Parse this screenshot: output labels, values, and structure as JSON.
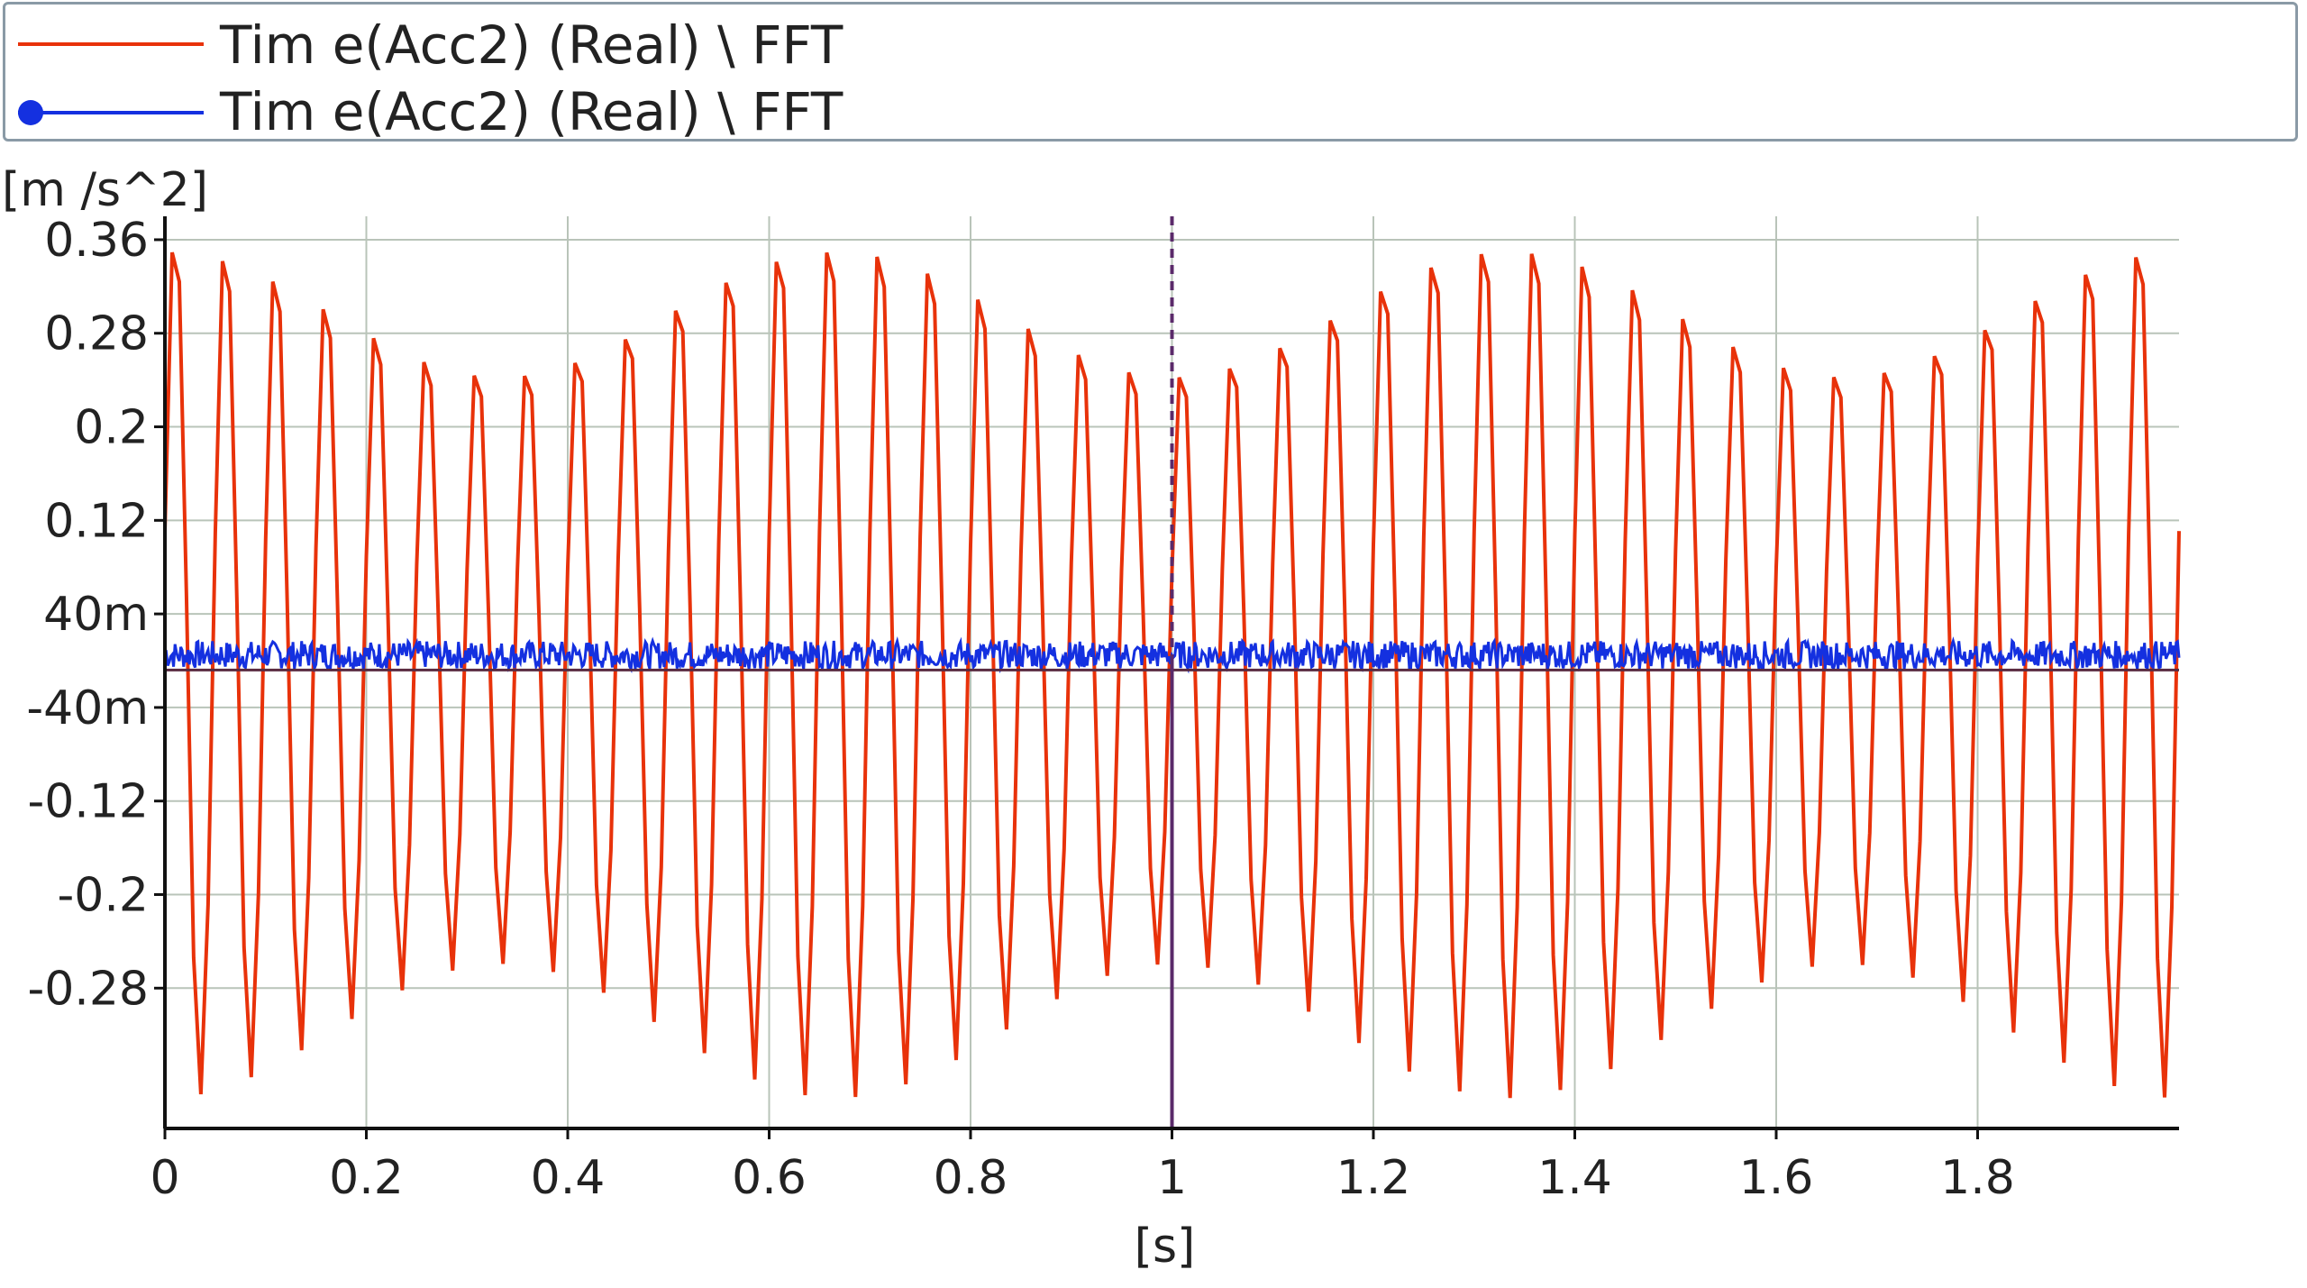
{
  "legend": {
    "items": [
      {
        "label": "Tim e(Acc2) (Real) \\ FFT",
        "color": "#e8320a",
        "marker": "none"
      },
      {
        "label": "Tim e(Acc2) (Real) \\ FFT",
        "color": "#1430e0",
        "marker": "dot"
      }
    ]
  },
  "chart_data": {
    "type": "line",
    "ylabel": "[m /s^2]",
    "xlabel": "[s]",
    "xlim": [
      0,
      2.0
    ],
    "ylim": [
      -0.4,
      0.38
    ],
    "xticks": [
      0,
      0.2,
      0.4,
      0.6,
      0.8,
      1.0,
      1.2,
      1.4,
      1.6,
      1.8
    ],
    "xtick_labels": [
      "0",
      "0.2",
      "0.4",
      "0.6",
      "0.8",
      "1",
      "1.2",
      "1.4",
      "1.6",
      "1.8"
    ],
    "yticks": [
      0.36,
      0.28,
      0.2,
      0.12,
      0.04,
      -0.04,
      -0.12,
      -0.2,
      -0.28
    ],
    "ytick_labels": [
      "0.36",
      "0.28",
      "0.2",
      "0.12",
      "40m",
      "-40m",
      "-0.12",
      "-0.2",
      "-0.28"
    ],
    "grid": true,
    "cursor_x": 1.0,
    "series": [
      {
        "name": "Tim e(Acc2) (Real) \\ FFT",
        "color": "#e8320a",
        "description_values": {
          "carrier_frequency_hz": 20,
          "beat_frequency_hz": 1.5,
          "amplitude_max": 0.375,
          "amplitude_min": 0.26,
          "sample_rate_hz": 140
        }
      },
      {
        "name": "Tim e(Acc2) (Real) \\ FFT",
        "color": "#1430e0",
        "description_values": {
          "mean": 0.005,
          "noise_amplitude": 0.012
        }
      }
    ]
  }
}
